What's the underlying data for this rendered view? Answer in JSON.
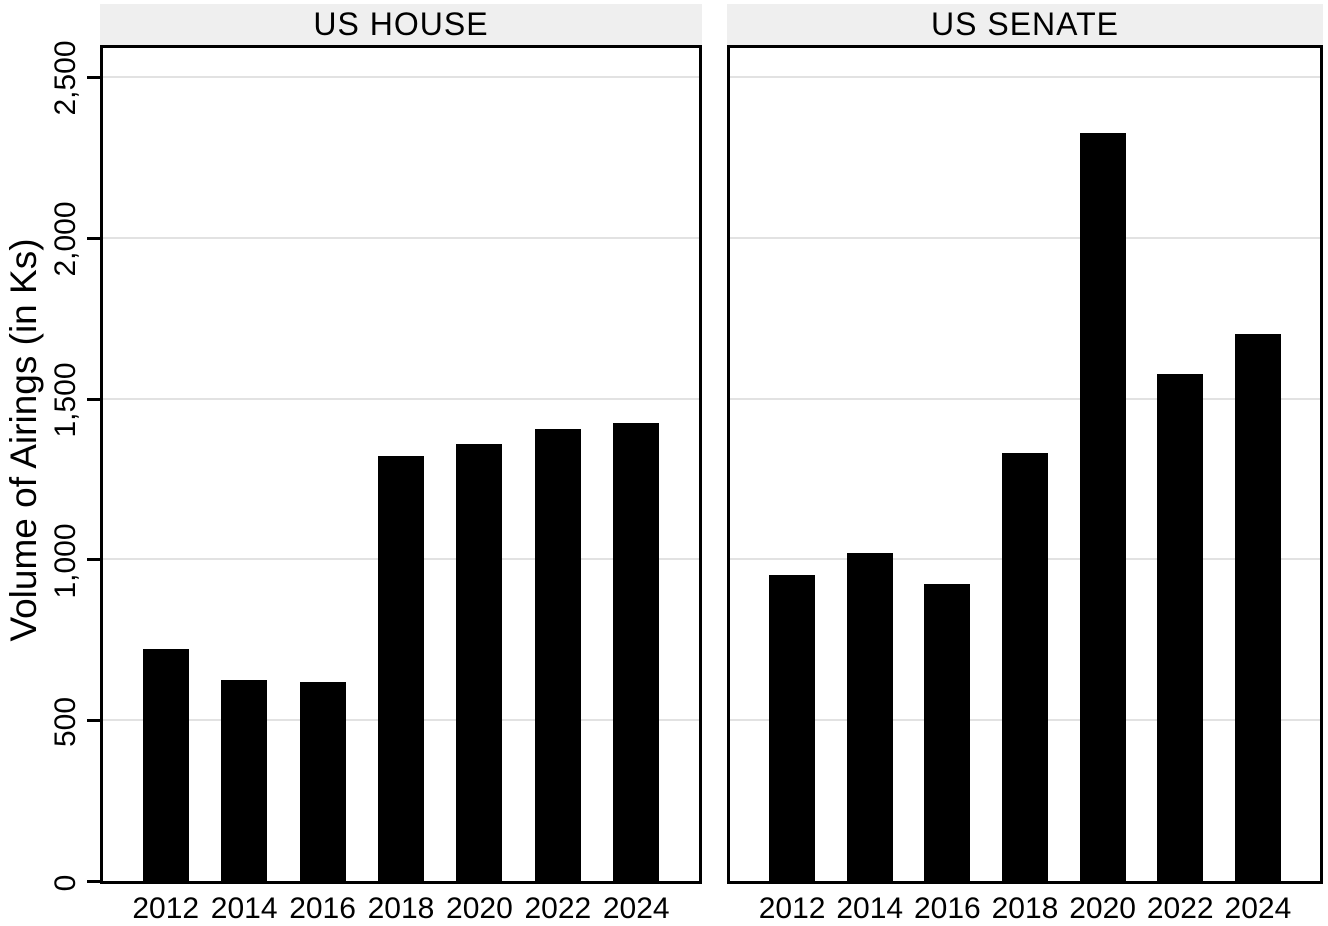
{
  "figure": {
    "background": "#ffffff"
  },
  "chart_data": {
    "type": "bar",
    "title": "",
    "ylabel": "Volume of Airings (in Ks)",
    "xlabel": "",
    "ylim": [
      0,
      2590
    ],
    "grid": true,
    "legend": "none",
    "bar_color": "#000000",
    "axis_color": "#000000",
    "gridline_color": "#e2e2e2",
    "header_bg": "#efefef",
    "yticks": {
      "values": [
        0,
        500,
        1000,
        1500,
        2000,
        2500
      ],
      "labels": [
        "0",
        "500",
        "1,000",
        "1,500",
        "2,000",
        "2,500"
      ]
    },
    "categories": [
      "2012",
      "2014",
      "2016",
      "2018",
      "2020",
      "2022",
      "2024"
    ],
    "panels": [
      {
        "title": "US HOUSE",
        "values": [
          720,
          625,
          620,
          1320,
          1360,
          1405,
          1425
        ]
      },
      {
        "title": "US SENATE",
        "values": [
          950,
          1020,
          925,
          1330,
          2325,
          1575,
          1700
        ]
      }
    ]
  }
}
